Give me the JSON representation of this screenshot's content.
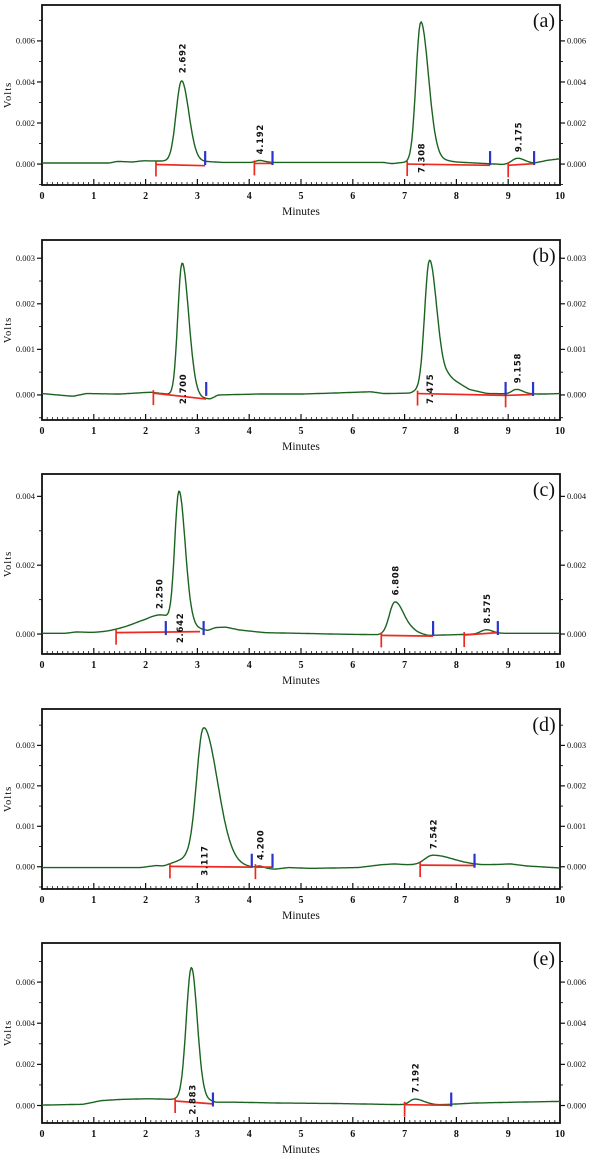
{
  "figure": {
    "description": "Stacked HPLC chromatograms, five panels",
    "panel_count": 5
  },
  "colors": {
    "trace": "#1b6320",
    "integration": "#ee2a20",
    "marker": "#2a35cc",
    "axis": "#111111",
    "background": "#ffffff",
    "text": "#111111"
  },
  "chart_data": [
    {
      "type": "line",
      "panel_label": "(a)",
      "xlabel": "Minutes",
      "ylabel": "Volts",
      "xlim": [
        0,
        10
      ],
      "ylim": [
        -0.00102,
        0.00775
      ],
      "grid": false,
      "xticks": [
        0,
        1,
        2,
        3,
        4,
        5,
        6,
        7,
        8,
        9,
        10
      ],
      "yticks": [
        0,
        0.002,
        0.004,
        0.006
      ],
      "ytick_labels": [
        "0.000",
        "0.002",
        "0.004",
        "0.006"
      ],
      "peaks": [
        {
          "label": "2.692",
          "rt": 2.692,
          "height": 0.004,
          "wl": 0.1,
          "wr": 0.14,
          "label_pos": "apex"
        },
        {
          "label": "4.192",
          "rt": 4.192,
          "height": 0.0001,
          "wl": 0.06,
          "wr": 0.1,
          "label_pos": "apex"
        },
        {
          "label": "7.308",
          "rt": 7.308,
          "height": 0.0069,
          "wl": 0.085,
          "wr": 0.15,
          "label_pos": "base"
        },
        {
          "label": "9.175",
          "rt": 9.175,
          "height": 0.00028,
          "wl": 0.1,
          "wr": 0.14,
          "label_pos": "apex"
        }
      ],
      "baseline": [
        [
          0,
          5e-05
        ],
        [
          1.3,
          5e-05
        ],
        [
          1.45,
          0.00013
        ],
        [
          1.75,
          0.0001
        ],
        [
          1.95,
          0.00016
        ],
        [
          3.2,
          0.00012
        ],
        [
          3.5,
          8e-05
        ],
        [
          6.6,
          8e-05
        ],
        [
          6.75,
          2e-05
        ],
        [
          7.6,
          0.00025
        ],
        [
          8.0,
          0.0001
        ],
        [
          8.45,
          4e-05
        ],
        [
          8.9,
          -2e-05
        ],
        [
          9.5,
          4e-05
        ],
        [
          9.75,
          0.00018
        ],
        [
          10,
          0.00026
        ]
      ],
      "integration_segments": [
        {
          "x1": 2.2,
          "y1": -2e-05,
          "x2": 3.15,
          "y2": -8e-05
        },
        {
          "x1": 4.1,
          "y1": 3e-05,
          "x2": 4.45,
          "y2": 3e-05
        },
        {
          "x1": 7.05,
          "y1": 0.0,
          "x2": 8.65,
          "y2": -6e-05
        },
        {
          "x1": 9.0,
          "y1": -6e-05,
          "x2": 9.5,
          "y2": 2e-05
        }
      ],
      "peak_end_markers": [
        3.15,
        4.45,
        8.65,
        9.5
      ]
    },
    {
      "type": "line",
      "panel_label": "(b)",
      "xlabel": "Minutes",
      "ylabel": "Volts",
      "xlim": [
        0,
        10
      ],
      "ylim": [
        -0.00055,
        0.0034
      ],
      "grid": false,
      "xticks": [
        0,
        1,
        2,
        3,
        4,
        5,
        6,
        7,
        8,
        9,
        10
      ],
      "yticks": [
        0,
        0.001,
        0.002,
        0.003
      ],
      "ytick_labels": [
        "0.000",
        "0.001",
        "0.002",
        "0.003"
      ],
      "peaks": [
        {
          "label": "2.700",
          "rt": 2.7,
          "height": 0.003,
          "wl": 0.075,
          "wr": 0.13,
          "label_pos": "base"
        },
        {
          "label": "7.475",
          "rt": 7.475,
          "height": 0.0028,
          "wl": 0.085,
          "wr": 0.14,
          "label_pos": "base"
        },
        {
          "label": "9.158",
          "rt": 9.158,
          "height": 0.0001,
          "wl": 0.08,
          "wr": 0.12,
          "label_pos": "apex"
        }
      ],
      "baseline": [
        [
          0,
          3e-05
        ],
        [
          0.6,
          -3e-05
        ],
        [
          0.85,
          3e-05
        ],
        [
          1.5,
          2e-05
        ],
        [
          2.1,
          6e-05
        ],
        [
          3.25,
          -9e-05
        ],
        [
          3.4,
          0.0
        ],
        [
          4.2,
          2e-05
        ],
        [
          5.0,
          2e-05
        ],
        [
          5.6,
          4e-05
        ],
        [
          6.35,
          7e-05
        ],
        [
          6.6,
          3e-05
        ],
        [
          7.1,
          4e-05
        ],
        [
          7.85,
          0.0004
        ],
        [
          8.25,
          0.00012
        ],
        [
          8.6,
          3e-05
        ],
        [
          9.7,
          2e-05
        ],
        [
          10,
          3e-05
        ]
      ],
      "integration_segments": [
        {
          "x1": 2.15,
          "y1": 4e-05,
          "x2": 3.17,
          "y2": -9e-05
        },
        {
          "x1": 7.25,
          "y1": 3e-05,
          "x2": 8.95,
          "y2": -1e-05
        },
        {
          "x1": 8.95,
          "y1": -1e-05,
          "x2": 9.48,
          "y2": 1e-05
        }
      ],
      "peak_end_markers": [
        3.17,
        8.95,
        9.48
      ]
    },
    {
      "type": "line",
      "panel_label": "(c)",
      "xlabel": "Minutes",
      "ylabel": "Volts",
      "xlim": [
        0,
        10
      ],
      "ylim": [
        -0.00058,
        0.00465
      ],
      "grid": false,
      "xticks": [
        0,
        1,
        2,
        3,
        4,
        5,
        6,
        7,
        8,
        9,
        10
      ],
      "yticks": [
        0,
        0.002,
        0.004
      ],
      "ytick_labels": [
        "0.000",
        "0.002",
        "0.004"
      ],
      "peaks": [
        {
          "label": "2.250",
          "rt": 2.25,
          "height": 0.0005,
          "wl": 0.45,
          "wr": 0.28,
          "label_pos": "apex"
        },
        {
          "label": "2.642",
          "rt": 2.642,
          "height": 0.00395,
          "wl": 0.075,
          "wr": 0.12,
          "label_pos": "base"
        },
        {
          "label": "6.808",
          "rt": 6.808,
          "height": 0.00092,
          "wl": 0.1,
          "wr": 0.17,
          "label_pos": "apex"
        },
        {
          "label": "8.575",
          "rt": 8.575,
          "height": 0.00012,
          "wl": 0.1,
          "wr": 0.12,
          "label_pos": "apex"
        }
      ],
      "baseline": [
        [
          0,
          2e-05
        ],
        [
          0.45,
          2e-05
        ],
        [
          0.65,
          6e-05
        ],
        [
          1.0,
          4e-05
        ],
        [
          1.45,
          5e-05
        ],
        [
          2.0,
          0.0
        ],
        [
          2.9,
          0.0002
        ],
        [
          3.2,
          0.0001
        ],
        [
          3.35,
          0.00019
        ],
        [
          3.55,
          0.0002
        ],
        [
          3.8,
          0.00012
        ],
        [
          4.3,
          4e-05
        ],
        [
          5.0,
          2e-05
        ],
        [
          5.6,
          0.0
        ],
        [
          6.5,
          -2e-05
        ],
        [
          7.15,
          8e-05
        ],
        [
          7.45,
          -4e-05
        ],
        [
          8.2,
          -1e-05
        ],
        [
          8.85,
          2e-05
        ],
        [
          10,
          2e-05
        ]
      ],
      "integration_segments": [
        {
          "x1": 1.43,
          "y1": 4e-05,
          "x2": 3.05,
          "y2": 7e-05
        },
        {
          "x1": 6.55,
          "y1": -4e-05,
          "x2": 7.55,
          "y2": -6e-05
        },
        {
          "x1": 8.15,
          "y1": -3e-05,
          "x2": 8.8,
          "y2": 4e-05
        }
      ],
      "peak_end_markers": [
        2.39,
        3.12,
        7.55,
        8.8
      ]
    },
    {
      "type": "line",
      "panel_label": "(d)",
      "xlabel": "Minutes",
      "ylabel": "Volts",
      "xlim": [
        0,
        10
      ],
      "ylim": [
        -0.00055,
        0.0039
      ],
      "grid": false,
      "xticks": [
        0,
        1,
        2,
        3,
        4,
        5,
        6,
        7,
        8,
        9,
        10
      ],
      "yticks": [
        0,
        0.001,
        0.002,
        0.003
      ],
      "ytick_labels": [
        "0.000",
        "0.001",
        "0.002",
        "0.003"
      ],
      "peaks": [
        {
          "label": "3.117",
          "rt": 3.117,
          "height": 0.0033,
          "wl": 0.13,
          "wr": 0.27,
          "label_pos": "base"
        },
        {
          "label": "4.200",
          "rt": 4.2,
          "height": 5e-05,
          "wl": 0.06,
          "wr": 0.08,
          "label_pos": "apex"
        },
        {
          "label": "7.542",
          "rt": 7.542,
          "height": 0.00024,
          "wl": 0.15,
          "wr": 0.4,
          "label_pos": "apex"
        }
      ],
      "baseline": [
        [
          0,
          -2e-05
        ],
        [
          1.9,
          -2e-05
        ],
        [
          2.2,
          3e-05
        ],
        [
          2.35,
          2e-05
        ],
        [
          2.78,
          0.00022
        ],
        [
          2.95,
          0.0002
        ],
        [
          4.1,
          -2e-05
        ],
        [
          4.5,
          -6e-05
        ],
        [
          4.75,
          -2e-05
        ],
        [
          5.2,
          -4e-05
        ],
        [
          6.1,
          -2e-05
        ],
        [
          6.55,
          5e-05
        ],
        [
          6.8,
          7e-05
        ],
        [
          7.05,
          5e-05
        ],
        [
          8.5,
          4e-05
        ],
        [
          9.05,
          7e-05
        ],
        [
          9.35,
          2e-05
        ],
        [
          10,
          -3e-05
        ]
      ],
      "integration_segments": [
        {
          "x1": 2.47,
          "y1": 1e-05,
          "x2": 4.05,
          "y2": -1e-05
        },
        {
          "x1": 4.12,
          "y1": -1e-05,
          "x2": 4.45,
          "y2": -1e-05
        },
        {
          "x1": 7.3,
          "y1": 4e-05,
          "x2": 8.35,
          "y2": 3e-05
        }
      ],
      "peak_end_markers": [
        4.05,
        4.45,
        8.35
      ]
    },
    {
      "type": "line",
      "panel_label": "(e)",
      "xlabel": "Minutes",
      "ylabel": "Volts",
      "xlim": [
        0,
        10
      ],
      "ylim": [
        -0.00085,
        0.0079
      ],
      "grid": false,
      "xticks": [
        0,
        1,
        2,
        3,
        4,
        5,
        6,
        7,
        8,
        9,
        10
      ],
      "yticks": [
        0,
        0.002,
        0.004,
        0.006
      ],
      "ytick_labels": [
        "0.000",
        "0.002",
        "0.004",
        "0.006"
      ],
      "peaks": [
        {
          "label": "2.883",
          "rt": 2.883,
          "height": 0.0065,
          "wl": 0.095,
          "wr": 0.11,
          "label_pos": "base"
        },
        {
          "label": "7.192",
          "rt": 7.192,
          "height": 0.00028,
          "wl": 0.09,
          "wr": 0.18,
          "label_pos": "apex"
        }
      ],
      "baseline": [
        [
          0,
          2e-05
        ],
        [
          0.8,
          6e-05
        ],
        [
          1.15,
          0.00024
        ],
        [
          1.55,
          0.0003
        ],
        [
          2.05,
          0.00033
        ],
        [
          2.5,
          0.0003
        ],
        [
          3.05,
          0.0004
        ],
        [
          3.35,
          0.00016
        ],
        [
          3.75,
          0.00016
        ],
        [
          4.6,
          0.00012
        ],
        [
          5.6,
          0.0001
        ],
        [
          6.3,
          7e-05
        ],
        [
          7.0,
          4e-05
        ],
        [
          7.65,
          3e-05
        ],
        [
          8.35,
          0.00012
        ],
        [
          9.1,
          0.00016
        ],
        [
          10,
          0.0002
        ]
      ],
      "integration_segments": [
        {
          "x1": 2.57,
          "y1": 0.00022,
          "x2": 3.3,
          "y2": 8e-05
        },
        {
          "x1": 7.0,
          "y1": 4e-05,
          "x2": 7.9,
          "y2": 1e-05
        }
      ],
      "peak_end_markers": [
        3.3,
        7.9
      ]
    }
  ]
}
